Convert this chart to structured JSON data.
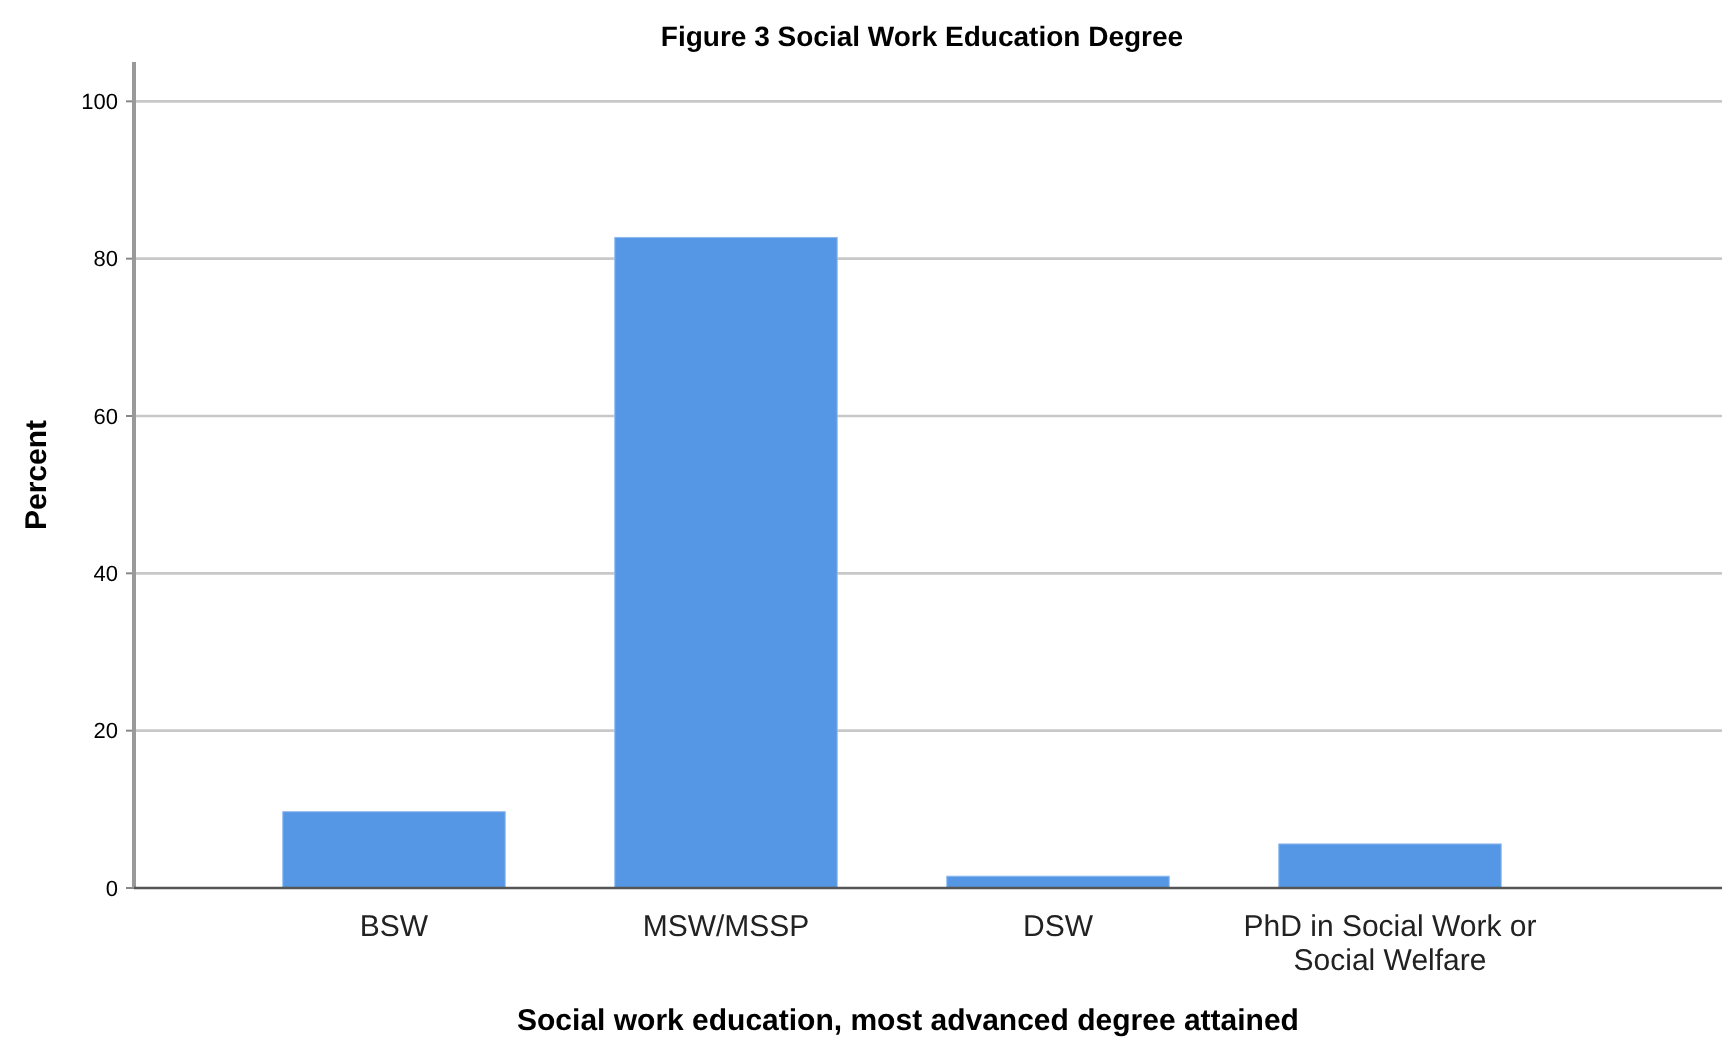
{
  "chart_data": {
    "type": "bar",
    "title": "Figure 3 Social Work Education Degree",
    "xlabel": "Social work education, most advanced degree attained",
    "ylabel": "Percent",
    "categories": [
      "BSW",
      "MSW/MSSP",
      "DSW",
      "PhD in Social Work or Social Welfare"
    ],
    "values": [
      9.7,
      82.7,
      1.5,
      5.6
    ],
    "color": "#5597e4",
    "ylim": [
      0,
      105
    ],
    "yticks": [
      0,
      20,
      40,
      60,
      80,
      100
    ],
    "grid": "y"
  }
}
